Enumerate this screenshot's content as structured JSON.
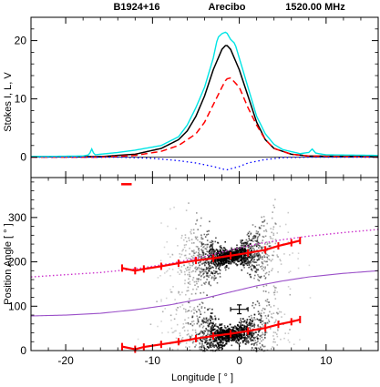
{
  "header": {
    "pulsar": "B1924+16",
    "telescope": "Arecibo",
    "frequency": "1520.00 MHz"
  },
  "chart_data": [
    {
      "type": "line",
      "panel": "stokes",
      "ylabel": "Stokes I, L, V",
      "xlim": [
        -24,
        16
      ],
      "ylim": [
        -3.5,
        24
      ],
      "yticks": [
        0,
        10,
        20
      ],
      "series": [
        {
          "key": "I",
          "color": "#000000",
          "style": "solid",
          "points": [
            [
              -24,
              0.1
            ],
            [
              -16,
              0.1
            ],
            [
              -12,
              0.5
            ],
            [
              -9,
              1.5
            ],
            [
              -7,
              3
            ],
            [
              -6,
              4.5
            ],
            [
              -5,
              7
            ],
            [
              -4,
              10.5
            ],
            [
              -3,
              15
            ],
            [
              -2,
              18.5
            ],
            [
              -1.5,
              19.3
            ],
            [
              -1,
              18.5
            ],
            [
              0,
              15
            ],
            [
              1,
              10.5
            ],
            [
              2,
              6
            ],
            [
              3,
              3
            ],
            [
              4,
              1.5
            ],
            [
              6,
              0.5
            ],
            [
              8,
              0.2
            ],
            [
              16,
              0.1
            ]
          ]
        },
        {
          "key": "L",
          "color": "#ff0000",
          "style": "dashed",
          "points": [
            [
              -24,
              0
            ],
            [
              -16,
              0
            ],
            [
              -12,
              0.3
            ],
            [
              -9,
              1
            ],
            [
              -7,
              2
            ],
            [
              -5,
              4
            ],
            [
              -4,
              6
            ],
            [
              -3,
              9
            ],
            [
              -2,
              12
            ],
            [
              -1.5,
              13.4
            ],
            [
              -1,
              13.6
            ],
            [
              0,
              12
            ],
            [
              1,
              8.5
            ],
            [
              2,
              5.5
            ],
            [
              3,
              3
            ],
            [
              4,
              1.5
            ],
            [
              6,
              0.5
            ],
            [
              8,
              0.2
            ],
            [
              16,
              0
            ]
          ]
        },
        {
          "key": "V",
          "color": "#0000ff",
          "style": "dotted",
          "points": [
            [
              -24,
              0
            ],
            [
              -14,
              0
            ],
            [
              -10,
              -0.2
            ],
            [
              -7,
              -0.6
            ],
            [
              -5,
              -1
            ],
            [
              -3,
              -1.6
            ],
            [
              -2,
              -2
            ],
            [
              -1.5,
              -2.2
            ],
            [
              -1,
              -2
            ],
            [
              0,
              -1.6
            ],
            [
              1,
              -1
            ],
            [
              3,
              -0.4
            ],
            [
              5,
              -0.1
            ],
            [
              8,
              0
            ],
            [
              16,
              0
            ]
          ]
        },
        {
          "key": "I_other",
          "color": "#00e5e5",
          "style": "solid",
          "points": [
            [
              -24,
              0.1
            ],
            [
              -18,
              0.2
            ],
            [
              -17.3,
              0.4
            ],
            [
              -17,
              1.4
            ],
            [
              -16.7,
              0.4
            ],
            [
              -14,
              0.8
            ],
            [
              -12,
              1.2
            ],
            [
              -9,
              2
            ],
            [
              -7,
              3.5
            ],
            [
              -6,
              5.5
            ],
            [
              -5,
              8.5
            ],
            [
              -4,
              12
            ],
            [
              -3,
              17
            ],
            [
              -2.5,
              20.5
            ],
            [
              -2,
              21.2
            ],
            [
              -1.5,
              21.5
            ],
            [
              -1,
              20.2
            ],
            [
              -0.5,
              19.5
            ],
            [
              0,
              17
            ],
            [
              1,
              12
            ],
            [
              2,
              7
            ],
            [
              3,
              4
            ],
            [
              4,
              2.2
            ],
            [
              5,
              1.3
            ],
            [
              7,
              0.6
            ],
            [
              8,
              0.8
            ],
            [
              8.4,
              1.4
            ],
            [
              8.8,
              0.7
            ],
            [
              10,
              0.4
            ],
            [
              16,
              0.3
            ]
          ]
        }
      ]
    },
    {
      "type": "scatter",
      "panel": "position-angle",
      "xlabel": "Longitude",
      "xlabel_unit": "°",
      "ylabel": "Position Angle",
      "ylabel_unit": "°",
      "xlim": [
        -24,
        16
      ],
      "ylim": [
        0,
        390
      ],
      "xticks": [
        -20,
        -10,
        0,
        10
      ],
      "yticks": [
        0,
        100,
        200,
        300
      ],
      "pa_upper": [
        [
          -13.5,
          186
        ],
        [
          -12,
          180
        ],
        [
          -11,
          184
        ],
        [
          -9,
          190
        ],
        [
          -7,
          197
        ],
        [
          -5,
          203
        ],
        [
          -3,
          208
        ],
        [
          -1,
          214
        ],
        [
          1,
          220
        ],
        [
          3,
          227
        ],
        [
          4.5,
          236
        ],
        [
          6,
          243
        ],
        [
          7,
          248
        ]
      ],
      "pa_lower": [
        [
          -13.5,
          9
        ],
        [
          -12,
          3
        ],
        [
          -11,
          8
        ],
        [
          -9,
          14
        ],
        [
          -7,
          20
        ],
        [
          -5,
          27
        ],
        [
          -3,
          33
        ],
        [
          -1,
          38
        ],
        [
          1,
          44
        ],
        [
          3,
          51
        ],
        [
          4.5,
          59
        ],
        [
          6,
          65
        ],
        [
          7,
          70
        ]
      ],
      "rvm_curve": [
        [
          -24,
          78
        ],
        [
          -20,
          80
        ],
        [
          -16,
          84
        ],
        [
          -12,
          92
        ],
        [
          -8,
          103
        ],
        [
          -4,
          118
        ],
        [
          -1,
          132
        ],
        [
          2,
          146
        ],
        [
          5,
          157
        ],
        [
          8,
          166
        ],
        [
          12,
          174
        ],
        [
          16,
          180
        ]
      ],
      "rvm_curve_dotted": [
        [
          -24,
          166
        ],
        [
          -20,
          171
        ],
        [
          -16,
          176
        ],
        [
          -12,
          184
        ],
        [
          -8,
          196
        ],
        [
          -4,
          212
        ],
        [
          -1,
          227
        ],
        [
          2,
          240
        ],
        [
          5,
          250
        ],
        [
          8,
          258
        ],
        [
          12,
          266
        ],
        [
          16,
          273
        ]
      ],
      "error_bar": {
        "x": 0,
        "y": 93,
        "xerr": 1,
        "yerr": 10
      },
      "upper_stray_mark": {
        "x": -13,
        "y": 375
      }
    }
  ]
}
